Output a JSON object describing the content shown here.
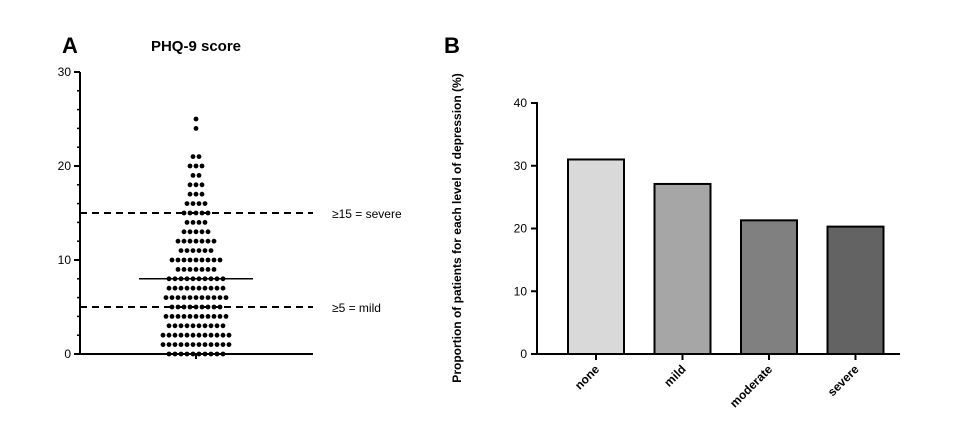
{
  "chart_data": [
    {
      "type": "scatter",
      "panel_label": "A",
      "title": "PHQ-9 score",
      "xlabel": "",
      "ylabel": "",
      "ylim": [
        0,
        30
      ],
      "yticks": [
        0,
        10,
        20,
        30
      ],
      "distribution": [
        {
          "y": 0,
          "count": 10
        },
        {
          "y": 1,
          "count": 12
        },
        {
          "y": 2,
          "count": 12
        },
        {
          "y": 3,
          "count": 10
        },
        {
          "y": 4,
          "count": 11
        },
        {
          "y": 5,
          "count": 9
        },
        {
          "y": 6,
          "count": 11
        },
        {
          "y": 7,
          "count": 10
        },
        {
          "y": 8,
          "count": 10
        },
        {
          "y": 9,
          "count": 7
        },
        {
          "y": 10,
          "count": 9
        },
        {
          "y": 11,
          "count": 6
        },
        {
          "y": 12,
          "count": 7
        },
        {
          "y": 13,
          "count": 5
        },
        {
          "y": 14,
          "count": 4
        },
        {
          "y": 15,
          "count": 5
        },
        {
          "y": 16,
          "count": 4
        },
        {
          "y": 17,
          "count": 3
        },
        {
          "y": 18,
          "count": 3
        },
        {
          "y": 19,
          "count": 2
        },
        {
          "y": 20,
          "count": 3
        },
        {
          "y": 21,
          "count": 2
        },
        {
          "y": 24,
          "count": 1
        },
        {
          "y": 25,
          "count": 1
        }
      ],
      "median": 8,
      "reference_lines": [
        {
          "y": 15,
          "label": "≥15 = severe"
        },
        {
          "y": 5,
          "label": "≥5 = mild"
        }
      ]
    },
    {
      "type": "bar",
      "panel_label": "B",
      "title": "",
      "categories": [
        "none",
        "mild",
        "moderate",
        "severe"
      ],
      "values": [
        31,
        27.1,
        21.3,
        20.3
      ],
      "colors": [
        "#d9d9d9",
        "#a6a6a6",
        "#808080",
        "#636363"
      ],
      "xlabel": "",
      "ylabel": "Proportion of patients for each level of depression (%)",
      "ylim": [
        0,
        40
      ],
      "yticks": [
        0,
        10,
        20,
        30,
        40
      ]
    }
  ]
}
